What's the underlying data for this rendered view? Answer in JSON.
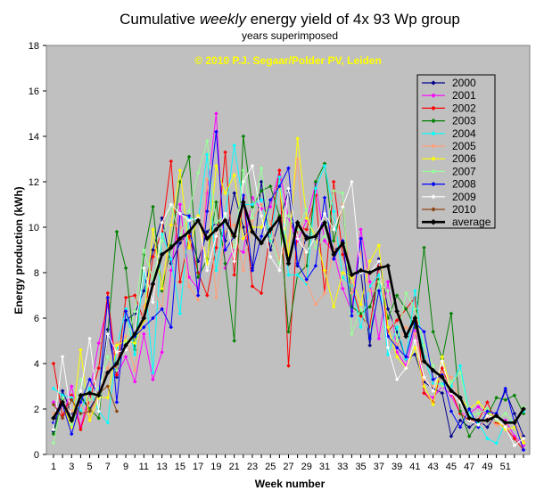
{
  "chart_data": {
    "type": "line",
    "title": {
      "part1": "Cumulative",
      "part2": "weekly",
      "part3": "energy yield of 4x 93 Wp group"
    },
    "subtitle": "years superimposed",
    "copyright": "© 2010 P.J. Segaar/Polder PV, Leiden",
    "xlabel": "Week number",
    "ylabel": "Energy production (kWh)",
    "xlim": [
      1,
      53
    ],
    "ylim": [
      0,
      18
    ],
    "xticks": [
      1,
      3,
      5,
      7,
      9,
      11,
      13,
      15,
      17,
      19,
      21,
      23,
      25,
      27,
      29,
      31,
      33,
      35,
      37,
      39,
      41,
      43,
      45,
      47,
      49,
      51
    ],
    "yticks": [
      0,
      2,
      4,
      6,
      8,
      10,
      12,
      14,
      16,
      18
    ],
    "grid": false,
    "legend_position": "right",
    "colors": {
      "plot_background": "#c0c0c0",
      "frame": "#808080",
      "copyright": "#ffff00"
    },
    "series": [
      {
        "name": "2000",
        "color": "#00008b",
        "values": [
          1.0,
          2.8,
          1.8,
          2.6,
          2.0,
          2.7,
          5.5,
          3.4,
          5.9,
          6.2,
          7.2,
          9.0,
          10.4,
          8.4,
          9.3,
          9.8,
          8.5,
          9.8,
          10.2,
          9.4,
          11.5,
          10.0,
          8.2,
          12.0,
          9.0,
          10.3,
          11.6,
          8.3,
          9.6,
          9.5,
          10.2,
          9.0,
          9.2,
          7.9,
          8.0,
          4.8,
          8.6,
          6.4,
          5.4,
          4.2,
          4.4,
          3.2,
          2.9,
          2.7,
          0.8,
          1.5,
          1.2,
          1.5,
          1.2,
          1.8,
          2.8,
          1.8,
          0.8
        ]
      },
      {
        "name": "2001",
        "color": "#ff00ff",
        "values": [
          2.3,
          1.6,
          3.0,
          1.2,
          2.7,
          4.9,
          6.6,
          3.5,
          4.3,
          3.2,
          5.3,
          3.3,
          4.5,
          8.1,
          11.0,
          7.8,
          7.3,
          11.5,
          15.0,
          8.2,
          9.1,
          8.9,
          11.3,
          10.8,
          10.9,
          12.5,
          10.4,
          9.4,
          10.3,
          11.9,
          9.4,
          8.9,
          7.3,
          6.3,
          9.9,
          7.6,
          5.1,
          7.6,
          4.5,
          3.9,
          5.6,
          2.7,
          2.5,
          3.0,
          2.6,
          1.8,
          1.8,
          2.1,
          1.7,
          1.6,
          1.5,
          0.8,
          0.4
        ]
      },
      {
        "name": "2002",
        "color": "#ff0000",
        "values": [
          4.0,
          1.7,
          2.6,
          1.1,
          2.4,
          3.8,
          7.1,
          3.5,
          6.9,
          7.0,
          5.9,
          8.7,
          9.8,
          12.9,
          7.6,
          9.6,
          8.0,
          7.0,
          9.1,
          13.3,
          7.9,
          11.3,
          7.4,
          7.1,
          9.8,
          12.5,
          3.9,
          10.0,
          9.9,
          11.4,
          7.1,
          12.0,
          8.8,
          7.4,
          6.1,
          5.6,
          8.3,
          5.4,
          5.9,
          6.4,
          6.9,
          2.7,
          2.3,
          3.8,
          2.8,
          1.8,
          1.5,
          1.5,
          2.3,
          1.4,
          1.2,
          0.7,
          0.2
        ]
      },
      {
        "name": "2003",
        "color": "#008000",
        "values": [
          0.9,
          2.4,
          1.3,
          2.5,
          2.0,
          1.6,
          5.3,
          9.8,
          8.2,
          4.6,
          8.8,
          10.9,
          7.2,
          9.2,
          12.0,
          13.1,
          7.8,
          8.6,
          11.1,
          8.4,
          5.0,
          14.0,
          10.9,
          11.6,
          11.8,
          10.5,
          5.4,
          7.9,
          8.3,
          12.0,
          12.8,
          9.4,
          11.0,
          6.5,
          6.2,
          6.5,
          7.7,
          6.0,
          7.0,
          6.4,
          5.6,
          9.1,
          5.4,
          4.2,
          6.2,
          1.9,
          0.8,
          1.4,
          1.7,
          2.5,
          2.4,
          2.6,
          1.8
        ]
      },
      {
        "name": "2004",
        "color": "#00ffff",
        "values": [
          2.9,
          2.6,
          2.5,
          1.9,
          2.9,
          1.9,
          1.4,
          4.7,
          6.4,
          4.4,
          8.2,
          3.6,
          9.7,
          8.6,
          6.2,
          10.4,
          10.3,
          13.2,
          8.1,
          10.5,
          13.6,
          11.0,
          11.0,
          11.2,
          9.4,
          12.2,
          7.9,
          7.9,
          7.5,
          11.7,
          12.7,
          10.7,
          7.8,
          7.4,
          5.6,
          7.4,
          7.9,
          4.4,
          5.6,
          4.2,
          7.2,
          4.3,
          3.1,
          3.1,
          3.0,
          3.9,
          1.8,
          1.4,
          0.7,
          0.5,
          1.4,
          1.5,
          1.9
        ]
      },
      {
        "name": "2005",
        "color": "#ffa07a",
        "values": [
          1.8,
          2.1,
          1.9,
          2.2,
          1.6,
          2.7,
          3.8,
          4.9,
          5.2,
          3.7,
          6.5,
          7.4,
          6.4,
          10.1,
          10.0,
          7.4,
          6.8,
          12.1,
          6.9,
          9.8,
          10.1,
          8.1,
          10.3,
          11.0,
          10.2,
          8.6,
          9.4,
          13.0,
          7.6,
          6.6,
          7.1,
          9.0,
          11.0,
          7.1,
          8.9,
          7.2,
          7.2,
          5.3,
          4.8,
          5.6,
          5.3,
          3.3,
          3.0,
          3.6,
          3.4,
          2.4,
          1.7,
          1.2,
          1.6,
          1.3,
          1.3,
          1.5,
          0.6
        ]
      },
      {
        "name": "2006",
        "color": "#ffff00",
        "values": [
          1.4,
          2.2,
          1.2,
          4.6,
          1.5,
          2.5,
          2.5,
          4.8,
          5.0,
          4.9,
          5.9,
          9.9,
          7.3,
          10.1,
          12.5,
          9.1,
          10.5,
          8.4,
          12.7,
          11.5,
          12.3,
          9.5,
          10.0,
          10.0,
          11.2,
          11.8,
          8.7,
          13.9,
          10.4,
          9.6,
          8.1,
          6.5,
          8.0,
          7.8,
          6.6,
          8.5,
          9.2,
          5.6,
          4.3,
          3.8,
          4.7,
          3.0,
          2.2,
          4.3,
          2.8,
          2.5,
          2.0,
          2.3,
          1.9,
          1.5,
          1.1,
          1.2,
          0.5
        ]
      },
      {
        "name": "2007",
        "color": "#99ff99",
        "values": [
          0.5,
          2.5,
          1.3,
          3.3,
          2.4,
          2.9,
          4.3,
          3.7,
          4.9,
          6.3,
          9.0,
          7.7,
          9.4,
          11.0,
          9.6,
          10.7,
          12.4,
          13.8,
          10.2,
          10.5,
          9.1,
          12.5,
          10.4,
          12.6,
          9.5,
          8.4,
          10.5,
          9.9,
          10.8,
          9.1,
          9.6,
          11.6,
          11.5,
          5.3,
          6.4,
          5.4,
          7.6,
          7.2,
          5.0,
          7.1,
          6.4,
          4.8,
          3.9,
          3.0,
          3.2,
          3.6,
          1.7,
          1.8,
          2.0,
          1.5,
          1.8,
          1.4,
          2.1
        ]
      },
      {
        "name": "2008",
        "color": "#0000ff",
        "values": [
          1.4,
          2.2,
          0.9,
          2.3,
          3.3,
          2.6,
          6.9,
          2.3,
          6.3,
          5.2,
          5.6,
          6.0,
          6.4,
          5.6,
          10.6,
          10.5,
          7.0,
          10.7,
          14.2,
          9.0,
          9.6,
          11.4,
          8.1,
          9.6,
          11.2,
          11.8,
          12.6,
          8.4,
          7.7,
          8.3,
          11.3,
          8.6,
          9.4,
          6.1,
          9.5,
          5.1,
          7.2,
          5.2,
          4.7,
          4.3,
          5.8,
          5.4,
          3.3,
          3.5,
          1.9,
          1.2,
          2.0,
          1.2,
          1.9,
          1.8,
          2.9,
          1.4,
          0.2
        ]
      },
      {
        "name": "2009",
        "color": "#ffffff",
        "values": [
          1.1,
          4.3,
          1.6,
          2.8,
          5.1,
          1.9,
          5.3,
          4.5,
          4.6,
          5.3,
          8.2,
          6.7,
          10.2,
          11.0,
          10.6,
          10.3,
          10.4,
          8.1,
          9.6,
          10.6,
          8.5,
          12.0,
          12.7,
          10.5,
          8.7,
          8.1,
          11.7,
          9.5,
          8.9,
          9.6,
          10.6,
          9.9,
          10.9,
          12.0,
          8.0,
          8.0,
          8.5,
          4.7,
          3.3,
          3.8,
          5.0,
          3.4,
          2.8,
          4.1,
          2.7,
          2.3,
          1.5,
          1.3,
          1.7,
          1.6,
          1.2,
          0.4,
          0.7
        ]
      },
      {
        "name": "2010",
        "color": "#8b4513",
        "values": [
          2.2,
          1.6,
          2.4,
          1.8,
          1.9,
          2.7,
          3.0,
          1.9
        ]
      },
      {
        "name": "average",
        "color": "#000000",
        "bold": true,
        "values": [
          1.6,
          2.3,
          1.5,
          2.6,
          2.7,
          2.6,
          3.6,
          4.0,
          4.8,
          5.3,
          6.0,
          7.5,
          8.8,
          9.1,
          9.5,
          9.8,
          10.3,
          9.5,
          9.9,
          10.3,
          9.6,
          11.1,
          9.8,
          9.3,
          9.9,
          10.4,
          8.4,
          10.2,
          9.5,
          9.6,
          10.2,
          8.8,
          9.3,
          7.9,
          8.1,
          8.0,
          8.2,
          8.3,
          6.3,
          5.2,
          6.0,
          4.1,
          3.7,
          3.4,
          2.8,
          2.5,
          1.6,
          1.5,
          1.5,
          1.7,
          1.4,
          1.4,
          2.0
        ]
      }
    ]
  }
}
